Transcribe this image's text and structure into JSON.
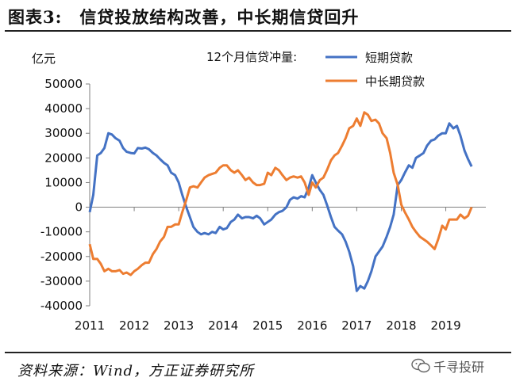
{
  "figure": {
    "number": "图表3:",
    "title": "信贷投放结构改善，中长期信贷回升",
    "source": "资料来源：Wind，方正证券研究所",
    "watermark": "千寻投研"
  },
  "colors": {
    "short": "#4472C4",
    "long": "#ED7D31",
    "axis": "#7f7f7f"
  },
  "chart_data": {
    "type": "line",
    "title": "12个月信贷冲量:",
    "ylabel": "亿元",
    "xlabel": "",
    "ylim": [
      -40000,
      50000
    ],
    "yticks": [
      50000,
      40000,
      30000,
      20000,
      10000,
      0,
      -10000,
      -20000,
      -30000,
      -40000
    ],
    "xlim": [
      2011.0,
      2019.9
    ],
    "xticks": [
      2011,
      2012,
      2013,
      2014,
      2015,
      2016,
      2017,
      2018,
      2019
    ],
    "grid": false,
    "legend": "top-right",
    "series": [
      {
        "name": "短期贷款",
        "color_key": "short",
        "points": [
          [
            2011.0,
            -2000
          ],
          [
            2011.08,
            5000
          ],
          [
            2011.17,
            21000
          ],
          [
            2011.25,
            22000
          ],
          [
            2011.33,
            24000
          ],
          [
            2011.42,
            30000
          ],
          [
            2011.5,
            29500
          ],
          [
            2011.58,
            28000
          ],
          [
            2011.67,
            27000
          ],
          [
            2011.75,
            24000
          ],
          [
            2011.83,
            22500
          ],
          [
            2011.92,
            22000
          ],
          [
            2012.0,
            21800
          ],
          [
            2012.08,
            24000
          ],
          [
            2012.17,
            23800
          ],
          [
            2012.25,
            24200
          ],
          [
            2012.33,
            23500
          ],
          [
            2012.42,
            22000
          ],
          [
            2012.5,
            21000
          ],
          [
            2012.58,
            19500
          ],
          [
            2012.67,
            18000
          ],
          [
            2012.75,
            17000
          ],
          [
            2012.83,
            14000
          ],
          [
            2012.92,
            13000
          ],
          [
            2013.0,
            10000
          ],
          [
            2013.08,
            5000
          ],
          [
            2013.17,
            0
          ],
          [
            2013.25,
            -4000
          ],
          [
            2013.33,
            -8000
          ],
          [
            2013.42,
            -10000
          ],
          [
            2013.5,
            -11000
          ],
          [
            2013.58,
            -10500
          ],
          [
            2013.67,
            -11000
          ],
          [
            2013.75,
            -10000
          ],
          [
            2013.83,
            -10500
          ],
          [
            2013.92,
            -8000
          ],
          [
            2014.0,
            -9000
          ],
          [
            2014.08,
            -8500
          ],
          [
            2014.17,
            -6000
          ],
          [
            2014.25,
            -5000
          ],
          [
            2014.33,
            -3000
          ],
          [
            2014.42,
            -4500
          ],
          [
            2014.5,
            -4000
          ],
          [
            2014.58,
            -4000
          ],
          [
            2014.67,
            -4500
          ],
          [
            2014.75,
            -3500
          ],
          [
            2014.83,
            -4500
          ],
          [
            2014.92,
            -7000
          ],
          [
            2015.0,
            -6000
          ],
          [
            2015.08,
            -5000
          ],
          [
            2015.17,
            -3000
          ],
          [
            2015.25,
            -2000
          ],
          [
            2015.33,
            -1500
          ],
          [
            2015.42,
            0
          ],
          [
            2015.5,
            3000
          ],
          [
            2015.58,
            4000
          ],
          [
            2015.67,
            3500
          ],
          [
            2015.75,
            4500
          ],
          [
            2015.83,
            4000
          ],
          [
            2015.92,
            8000
          ],
          [
            2016.0,
            13000
          ],
          [
            2016.08,
            10000
          ],
          [
            2016.17,
            7000
          ],
          [
            2016.25,
            5000
          ],
          [
            2016.33,
            1000
          ],
          [
            2016.42,
            -4000
          ],
          [
            2016.5,
            -8000
          ],
          [
            2016.58,
            -9500
          ],
          [
            2016.67,
            -11000
          ],
          [
            2016.75,
            -14000
          ],
          [
            2016.83,
            -18000
          ],
          [
            2016.92,
            -24000
          ],
          [
            2017.0,
            -34000
          ],
          [
            2017.08,
            -32000
          ],
          [
            2017.17,
            -33000
          ],
          [
            2017.25,
            -30000
          ],
          [
            2017.33,
            -26000
          ],
          [
            2017.42,
            -20000
          ],
          [
            2017.5,
            -18000
          ],
          [
            2017.58,
            -16000
          ],
          [
            2017.67,
            -12000
          ],
          [
            2017.75,
            -8000
          ],
          [
            2017.83,
            -3000
          ],
          [
            2017.92,
            9000
          ],
          [
            2018.0,
            11000
          ],
          [
            2018.08,
            14000
          ],
          [
            2018.17,
            17000
          ],
          [
            2018.25,
            16000
          ],
          [
            2018.33,
            20000
          ],
          [
            2018.42,
            21000
          ],
          [
            2018.5,
            22000
          ],
          [
            2018.58,
            25000
          ],
          [
            2018.67,
            27000
          ],
          [
            2018.75,
            27500
          ],
          [
            2018.83,
            29000
          ],
          [
            2018.92,
            30000
          ],
          [
            2019.0,
            30000
          ],
          [
            2019.08,
            34000
          ],
          [
            2019.17,
            32000
          ],
          [
            2019.25,
            33000
          ],
          [
            2019.33,
            29000
          ],
          [
            2019.42,
            23000
          ],
          [
            2019.5,
            19500
          ],
          [
            2019.58,
            16500
          ]
        ]
      },
      {
        "name": "中长期贷款",
        "color_key": "long",
        "points": [
          [
            2011.0,
            -15000
          ],
          [
            2011.08,
            -21000
          ],
          [
            2011.17,
            -21000
          ],
          [
            2011.25,
            -23000
          ],
          [
            2011.33,
            -26000
          ],
          [
            2011.42,
            -25000
          ],
          [
            2011.5,
            -26000
          ],
          [
            2011.58,
            -26000
          ],
          [
            2011.67,
            -25500
          ],
          [
            2011.75,
            -27000
          ],
          [
            2011.83,
            -26500
          ],
          [
            2011.92,
            -27500
          ],
          [
            2012.0,
            -26000
          ],
          [
            2012.08,
            -25000
          ],
          [
            2012.17,
            -23500
          ],
          [
            2012.25,
            -22500
          ],
          [
            2012.33,
            -22500
          ],
          [
            2012.42,
            -19000
          ],
          [
            2012.5,
            -17000
          ],
          [
            2012.58,
            -14000
          ],
          [
            2012.67,
            -12000
          ],
          [
            2012.75,
            -8000
          ],
          [
            2012.83,
            -8000
          ],
          [
            2012.92,
            -7000
          ],
          [
            2013.0,
            -7000
          ],
          [
            2013.08,
            -2000
          ],
          [
            2013.17,
            3000
          ],
          [
            2013.25,
            8000
          ],
          [
            2013.33,
            8500
          ],
          [
            2013.42,
            8000
          ],
          [
            2013.5,
            10000
          ],
          [
            2013.58,
            12000
          ],
          [
            2013.67,
            13000
          ],
          [
            2013.75,
            13500
          ],
          [
            2013.83,
            14000
          ],
          [
            2013.92,
            16000
          ],
          [
            2014.0,
            17000
          ],
          [
            2014.08,
            17000
          ],
          [
            2014.17,
            15000
          ],
          [
            2014.25,
            14000
          ],
          [
            2014.33,
            15000
          ],
          [
            2014.42,
            13000
          ],
          [
            2014.5,
            11000
          ],
          [
            2014.58,
            12000
          ],
          [
            2014.67,
            10000
          ],
          [
            2014.75,
            9000
          ],
          [
            2014.83,
            9000
          ],
          [
            2014.92,
            9500
          ],
          [
            2015.0,
            14000
          ],
          [
            2015.08,
            13000
          ],
          [
            2015.17,
            16000
          ],
          [
            2015.25,
            15000
          ],
          [
            2015.33,
            13000
          ],
          [
            2015.42,
            11000
          ],
          [
            2015.5,
            12000
          ],
          [
            2015.58,
            12500
          ],
          [
            2015.67,
            12000
          ],
          [
            2015.75,
            12500
          ],
          [
            2015.83,
            10000
          ],
          [
            2015.92,
            5000
          ],
          [
            2016.0,
            10000
          ],
          [
            2016.08,
            8000
          ],
          [
            2016.17,
            11000
          ],
          [
            2016.25,
            12000
          ],
          [
            2016.33,
            15000
          ],
          [
            2016.42,
            19000
          ],
          [
            2016.5,
            21000
          ],
          [
            2016.58,
            22000
          ],
          [
            2016.67,
            25000
          ],
          [
            2016.75,
            28000
          ],
          [
            2016.83,
            32000
          ],
          [
            2016.92,
            33000
          ],
          [
            2017.0,
            36000
          ],
          [
            2017.08,
            33000
          ],
          [
            2017.17,
            38500
          ],
          [
            2017.25,
            37500
          ],
          [
            2017.33,
            35000
          ],
          [
            2017.42,
            35500
          ],
          [
            2017.5,
            34000
          ],
          [
            2017.58,
            30000
          ],
          [
            2017.67,
            28000
          ],
          [
            2017.75,
            22000
          ],
          [
            2017.83,
            14000
          ],
          [
            2017.92,
            9000
          ],
          [
            2018.0,
            1000
          ],
          [
            2018.08,
            -2000
          ],
          [
            2018.17,
            -5000
          ],
          [
            2018.25,
            -8000
          ],
          [
            2018.33,
            -10000
          ],
          [
            2018.42,
            -12000
          ],
          [
            2018.5,
            -13000
          ],
          [
            2018.58,
            -14000
          ],
          [
            2018.67,
            -15500
          ],
          [
            2018.75,
            -17000
          ],
          [
            2018.83,
            -13000
          ],
          [
            2018.92,
            -7500
          ],
          [
            2019.0,
            -9000
          ],
          [
            2019.08,
            -5000
          ],
          [
            2019.17,
            -5000
          ],
          [
            2019.25,
            -5000
          ],
          [
            2019.33,
            -3000
          ],
          [
            2019.42,
            -4500
          ],
          [
            2019.5,
            -3500
          ],
          [
            2019.58,
            0
          ]
        ]
      }
    ]
  }
}
